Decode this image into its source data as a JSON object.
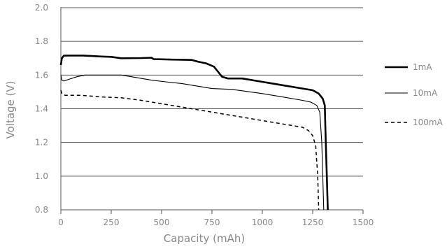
{
  "chart_data": {
    "type": "line",
    "title": "",
    "xlabel": "Capacity (mAh)",
    "ylabel": "Voltage (V)",
    "xlim": [
      0,
      1500
    ],
    "ylim": [
      0.8,
      2.0
    ],
    "xticks": [
      0,
      250,
      500,
      750,
      1000,
      1250,
      1500
    ],
    "yticks": [
      0.8,
      1.0,
      1.2,
      1.4,
      1.6,
      1.8,
      2.0
    ],
    "xtick_labels": [
      "0",
      "250",
      "500",
      "750",
      "1000",
      "1250",
      "1500"
    ],
    "ytick_labels": [
      "0.8",
      "1.0",
      "1.2",
      "1.4",
      "1.6",
      "1.8",
      "2.0"
    ],
    "grid": "horizontal",
    "legend_position": "right",
    "series": [
      {
        "name": "1mA",
        "style": "thick-solid",
        "color": "#000000",
        "points": [
          [
            0,
            1.66
          ],
          [
            5,
            1.7
          ],
          [
            15,
            1.715
          ],
          [
            40,
            1.716
          ],
          [
            110,
            1.716
          ],
          [
            200,
            1.71
          ],
          [
            250,
            1.708
          ],
          [
            300,
            1.7
          ],
          [
            400,
            1.701
          ],
          [
            450,
            1.703
          ],
          [
            460,
            1.695
          ],
          [
            550,
            1.692
          ],
          [
            650,
            1.69
          ],
          [
            680,
            1.68
          ],
          [
            720,
            1.67
          ],
          [
            760,
            1.65
          ],
          [
            780,
            1.62
          ],
          [
            800,
            1.59
          ],
          [
            830,
            1.58
          ],
          [
            900,
            1.58
          ],
          [
            1000,
            1.56
          ],
          [
            1100,
            1.54
          ],
          [
            1200,
            1.52
          ],
          [
            1250,
            1.51
          ],
          [
            1280,
            1.49
          ],
          [
            1300,
            1.46
          ],
          [
            1310,
            1.42
          ],
          [
            1315,
            1.2
          ],
          [
            1320,
            1.0
          ],
          [
            1325,
            0.8
          ]
        ]
      },
      {
        "name": "10mA",
        "style": "thin-solid",
        "color": "#000000",
        "points": [
          [
            0,
            1.6
          ],
          [
            5,
            1.57
          ],
          [
            15,
            1.565
          ],
          [
            40,
            1.575
          ],
          [
            80,
            1.59
          ],
          [
            120,
            1.6
          ],
          [
            200,
            1.6
          ],
          [
            300,
            1.6
          ],
          [
            350,
            1.59
          ],
          [
            450,
            1.57
          ],
          [
            520,
            1.56
          ],
          [
            600,
            1.55
          ],
          [
            700,
            1.53
          ],
          [
            750,
            1.52
          ],
          [
            850,
            1.515
          ],
          [
            1000,
            1.49
          ],
          [
            1100,
            1.47
          ],
          [
            1200,
            1.45
          ],
          [
            1240,
            1.44
          ],
          [
            1270,
            1.42
          ],
          [
            1285,
            1.38
          ],
          [
            1295,
            1.2
          ],
          [
            1300,
            1.0
          ],
          [
            1305,
            0.8
          ]
        ]
      },
      {
        "name": "100mA",
        "style": "dashed",
        "color": "#000000",
        "points": [
          [
            0,
            1.51
          ],
          [
            5,
            1.49
          ],
          [
            20,
            1.48
          ],
          [
            100,
            1.48
          ],
          [
            150,
            1.475
          ],
          [
            200,
            1.47
          ],
          [
            300,
            1.465
          ],
          [
            400,
            1.45
          ],
          [
            500,
            1.43
          ],
          [
            600,
            1.41
          ],
          [
            700,
            1.39
          ],
          [
            800,
            1.37
          ],
          [
            900,
            1.35
          ],
          [
            1000,
            1.33
          ],
          [
            1100,
            1.31
          ],
          [
            1200,
            1.29
          ],
          [
            1230,
            1.27
          ],
          [
            1250,
            1.24
          ],
          [
            1265,
            1.18
          ],
          [
            1275,
            1.0
          ],
          [
            1280,
            0.8
          ]
        ]
      }
    ]
  }
}
